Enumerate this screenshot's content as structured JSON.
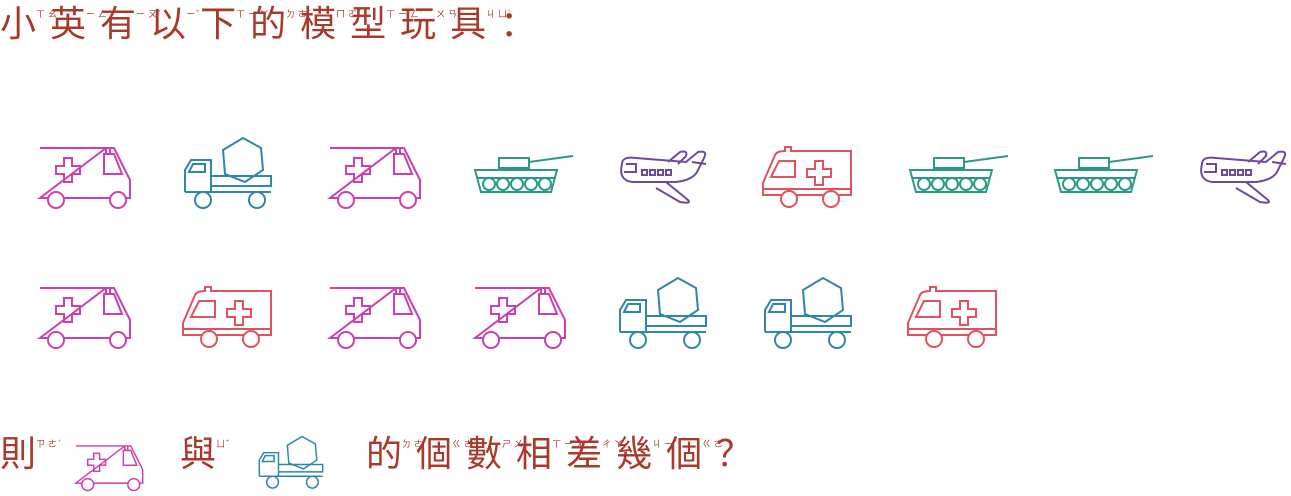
{
  "question": {
    "line1": [
      {
        "ch": "小",
        "zy": "ㄒ ㄠˇ"
      },
      {
        "ch": "英",
        "zy": "ㄧ ㄥ"
      },
      {
        "ch": "有",
        "zy": "ㄧ ㄡˇ"
      },
      {
        "ch": "以",
        "zy": "ㄧˇ"
      },
      {
        "ch": "下",
        "zy": "ㄒ ㄧ ㄚˋ"
      },
      {
        "ch": "的",
        "zy": "ㄉ ㄜ˙"
      },
      {
        "ch": "模",
        "zy": "ㄇ ㄛˊ"
      },
      {
        "ch": "型",
        "zy": "ㄒ ㄧ ㄥˊ"
      },
      {
        "ch": "玩",
        "zy": "ㄨ ㄢˊ"
      },
      {
        "ch": "具",
        "zy": "ㄐ ㄩˋ"
      },
      {
        "ch": "：",
        "zy": ""
      }
    ],
    "line2_part1": [
      {
        "ch": "則",
        "zy": "ㄗ ㄜˊ"
      }
    ],
    "line2_part2": [
      {
        "ch": "與",
        "zy": "ㄩˇ"
      }
    ],
    "line2_part3": [
      {
        "ch": "的",
        "zy": "ㄉ ㄜ˙"
      },
      {
        "ch": "個",
        "zy": "ㄍ ㄜˋ"
      },
      {
        "ch": "數",
        "zy": "ㄕ ㄨˋ"
      },
      {
        "ch": "相",
        "zy": "ㄒ ㄧ ㄤ"
      },
      {
        "ch": "差",
        "zy": "ㄔ ㄚ"
      },
      {
        "ch": "幾",
        "zy": "ㄐ ㄧˇ"
      },
      {
        "ch": "個",
        "zy": "ㄍ ㄜ˙"
      },
      {
        "ch": "？",
        "zy": ""
      }
    ]
  },
  "toys_row1": [
    "ambulance-right",
    "cement-truck",
    "ambulance-right",
    "tank",
    "airplane",
    "ambulance-left",
    "tank",
    "tank",
    "airplane"
  ],
  "toys_row2": [
    "ambulance-right",
    "ambulance-left",
    "ambulance-right",
    "ambulance-right",
    "cement-truck",
    "cement-truck",
    "ambulance-left"
  ],
  "colors": {
    "text": "#a8392b",
    "ambulance_right": "#cc3fae",
    "ambulance_left": "#e0525e",
    "cement_truck": "#2f86a8",
    "tank": "#2a9a88",
    "airplane": "#6e4a9c"
  }
}
